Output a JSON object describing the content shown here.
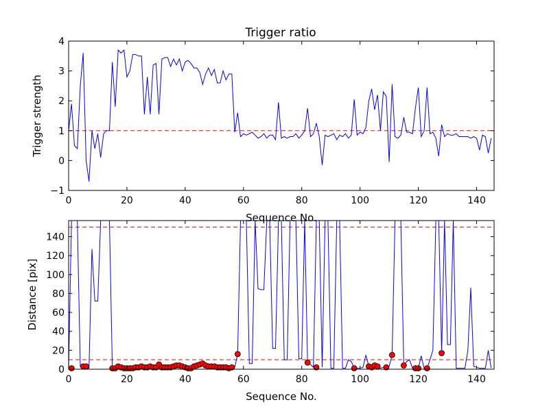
{
  "chart_data": [
    {
      "type": "line",
      "title": "Trigger ratio",
      "xlabel": "Sequence No.",
      "ylabel": "Trigger strength",
      "xlim": [
        0,
        146
      ],
      "ylim": [
        -1,
        4
      ],
      "xticks": [
        "0",
        "20",
        "40",
        "60",
        "80",
        "100",
        "120",
        "140"
      ],
      "yticks": [
        "−1",
        "0",
        "1",
        "2",
        "3",
        "4"
      ],
      "line_color": "#0000ff",
      "threshold": {
        "value": 1,
        "color": "#ff0000",
        "style": "dashed"
      },
      "y": [
        1.0,
        1.9,
        0.5,
        0.4,
        2.5,
        3.6,
        0.0,
        -0.7,
        1.0,
        0.4,
        0.9,
        0.1,
        0.9,
        1.0,
        1.0,
        3.3,
        1.8,
        3.7,
        3.6,
        3.7,
        2.8,
        3.0,
        3.55,
        3.55,
        3.5,
        3.5,
        1.55,
        2.8,
        1.55,
        3.2,
        3.25,
        1.55,
        3.4,
        3.45,
        3.45,
        3.15,
        3.4,
        3.2,
        3.4,
        3.0,
        3.3,
        3.35,
        3.25,
        3.1,
        3.1,
        2.95,
        2.55,
        2.9,
        3.1,
        2.85,
        3.05,
        2.6,
        2.6,
        3.0,
        2.7,
        2.9,
        2.9,
        0.95,
        1.6,
        0.8,
        0.9,
        0.85,
        0.9,
        0.95,
        0.85,
        0.75,
        0.8,
        0.9,
        0.75,
        0.85,
        0.85,
        0.7,
        1.95,
        0.75,
        0.8,
        0.75,
        0.8,
        0.8,
        0.9,
        0.75,
        0.85,
        1.0,
        1.75,
        0.8,
        0.9,
        1.25,
        0.8,
        -0.15,
        0.85,
        0.8,
        0.85,
        0.9,
        0.7,
        0.85,
        0.8,
        0.9,
        0.75,
        0.85,
        2.05,
        0.85,
        0.95,
        0.9,
        1.1,
        2.0,
        2.4,
        1.7,
        2.2,
        1.0,
        2.3,
        2.15,
        -0.05,
        2.55,
        0.8,
        0.75,
        0.85,
        1.45,
        0.95,
        0.95,
        0.9,
        1.75,
        2.45,
        0.8,
        1.0,
        2.45,
        0.9,
        0.95,
        0.75,
        0.15,
        1.2,
        0.8,
        0.9,
        0.85,
        0.85,
        0.9,
        0.8,
        0.8,
        0.8,
        0.8,
        0.75,
        0.8,
        0.75,
        0.35,
        0.85,
        0.8,
        0.25,
        0.75
      ]
    },
    {
      "type": "line+scatter",
      "title": "",
      "xlabel": "Sequence No.",
      "ylabel": "Distance [pix]",
      "xlim": [
        0,
        146
      ],
      "ylim": [
        0,
        157
      ],
      "xticks": [
        "0",
        "20",
        "40",
        "60",
        "80",
        "100",
        "120",
        "140"
      ],
      "yticks": [
        "0",
        "20",
        "40",
        "60",
        "80",
        "100",
        "120",
        "140"
      ],
      "line_color": "#0000ff",
      "marker_color": "#ff0000",
      "thresholds": [
        {
          "value": 10,
          "color": "#ff0000",
          "style": "dashed"
        },
        {
          "value": 150,
          "color": "#ff0000",
          "style": "dashed"
        }
      ],
      "y": [
        1,
        157,
        157,
        157,
        3,
        3,
        1,
        1,
        127,
        72,
        72,
        157,
        157,
        157,
        157,
        1,
        1,
        3,
        2,
        1,
        1,
        1,
        1,
        2,
        2,
        3,
        2,
        2,
        3,
        2,
        2,
        5,
        2,
        2,
        2,
        2,
        3,
        4,
        4,
        3,
        2,
        1,
        1,
        3,
        4,
        5,
        6,
        4,
        3,
        3,
        3,
        2,
        2,
        2,
        2,
        1,
        2,
        2,
        16,
        157,
        157,
        157,
        6,
        6,
        157,
        85,
        84,
        84,
        157,
        157,
        22,
        22,
        157,
        157,
        10,
        10,
        157,
        157,
        157,
        11,
        11,
        157,
        7,
        5,
        2,
        157,
        157,
        2,
        157,
        157,
        1,
        1,
        157,
        157,
        1,
        1,
        10,
        8,
        1,
        1,
        1,
        2,
        15,
        3,
        2,
        4,
        3,
        1,
        2,
        2,
        3,
        15,
        157,
        157,
        157,
        4,
        8,
        10,
        1,
        1,
        1,
        14,
        1,
        1,
        10,
        20,
        157,
        157,
        17,
        157,
        26,
        26,
        157,
        1,
        1,
        1,
        1,
        20,
        86,
        3,
        2,
        1,
        1,
        1,
        20,
        1
      ],
      "markers": [
        [
          1,
          1
        ],
        [
          5,
          3
        ],
        [
          6,
          3
        ],
        [
          15,
          1
        ],
        [
          16,
          1
        ],
        [
          17,
          3
        ],
        [
          18,
          2
        ],
        [
          19,
          1
        ],
        [
          20,
          1
        ],
        [
          21,
          1
        ],
        [
          22,
          1
        ],
        [
          23,
          2
        ],
        [
          24,
          2
        ],
        [
          25,
          3
        ],
        [
          26,
          2
        ],
        [
          27,
          2
        ],
        [
          28,
          3
        ],
        [
          29,
          2
        ],
        [
          30,
          2
        ],
        [
          31,
          5
        ],
        [
          32,
          2
        ],
        [
          33,
          2
        ],
        [
          34,
          2
        ],
        [
          35,
          2
        ],
        [
          36,
          3
        ],
        [
          37,
          4
        ],
        [
          38,
          4
        ],
        [
          39,
          3
        ],
        [
          40,
          2
        ],
        [
          41,
          1
        ],
        [
          42,
          1
        ],
        [
          43,
          3
        ],
        [
          44,
          4
        ],
        [
          45,
          5
        ],
        [
          46,
          6
        ],
        [
          47,
          4
        ],
        [
          48,
          3
        ],
        [
          49,
          3
        ],
        [
          50,
          3
        ],
        [
          51,
          2
        ],
        [
          52,
          2
        ],
        [
          53,
          2
        ],
        [
          54,
          2
        ],
        [
          55,
          1
        ],
        [
          56,
          2
        ],
        [
          58,
          16
        ],
        [
          82,
          7
        ],
        [
          85,
          2
        ],
        [
          98,
          1
        ],
        [
          103,
          3
        ],
        [
          104,
          2
        ],
        [
          105,
          4
        ],
        [
          106,
          3
        ],
        [
          109,
          2
        ],
        [
          111,
          15
        ],
        [
          115,
          4
        ],
        [
          119,
          1
        ],
        [
          120,
          1
        ],
        [
          123,
          1
        ],
        [
          128,
          17
        ]
      ]
    }
  ]
}
